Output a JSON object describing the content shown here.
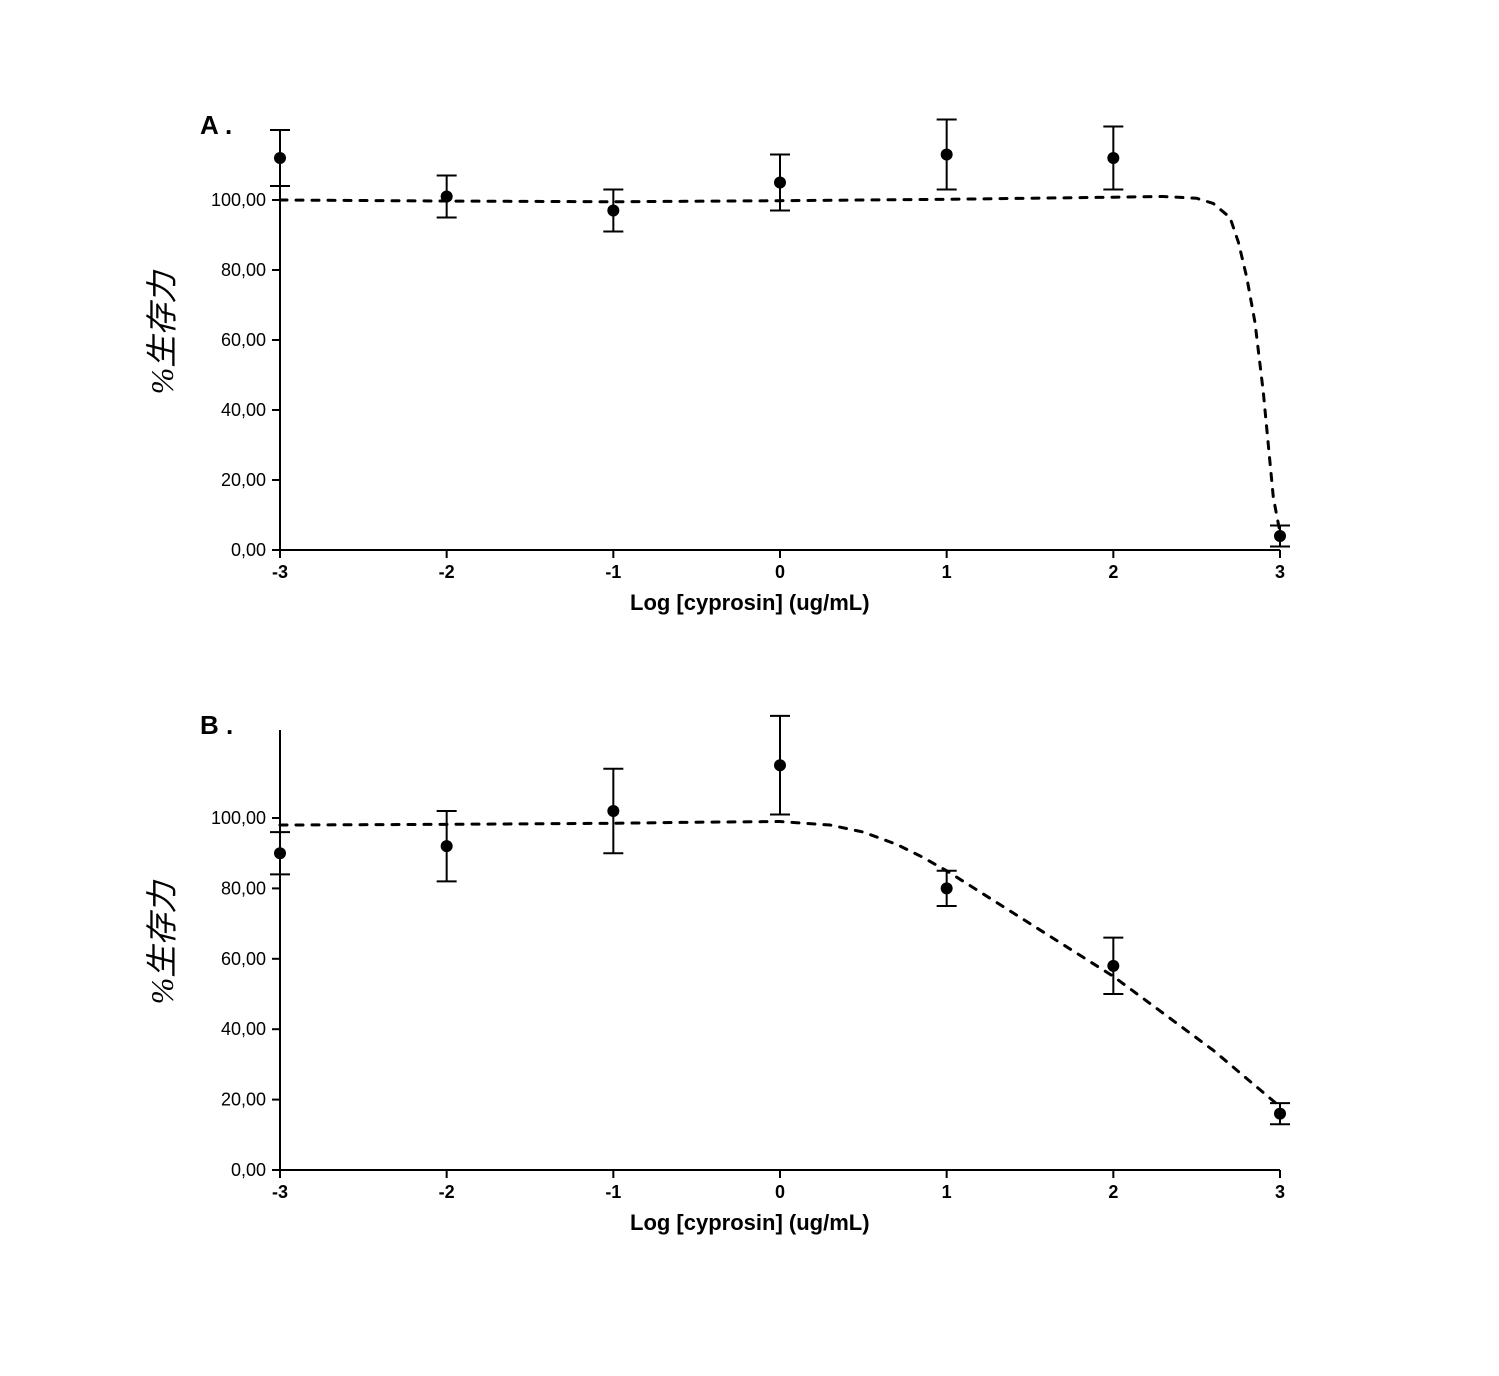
{
  "figure": {
    "background_color": "#ffffff",
    "panels": [
      {
        "id": "A",
        "label": "A .",
        "type": "scatter",
        "xlabel": "Log [cyprosin] (ug/mL)",
        "ylabel": "%生存力",
        "xlim": [
          -3,
          3
        ],
        "ylim": [
          0,
          120
        ],
        "xtick_values": [
          -3,
          -2,
          -1,
          0,
          1,
          2,
          3
        ],
        "xtick_labels": [
          "-3",
          "-2",
          "-1",
          "0",
          "1",
          "2",
          "3"
        ],
        "ytick_values": [
          0,
          20,
          40,
          60,
          80,
          100
        ],
        "ytick_labels": [
          "0,00",
          "20,00",
          "40,00",
          "60,00",
          "80,00",
          "100,00"
        ],
        "axis_color": "#000000",
        "tick_color": "#000000",
        "tick_fontsize": 18,
        "label_fontsize": 22,
        "marker_style": "circle",
        "marker_size": 6,
        "marker_color": "#000000",
        "errorbar_color": "#000000",
        "errorbar_width": 2,
        "errorbar_cap": 10,
        "curve_color": "#000000",
        "curve_style": "dashed",
        "curve_width": 3,
        "data": [
          {
            "x": -3,
            "y": 112,
            "err": 8
          },
          {
            "x": -2,
            "y": 101,
            "err": 6
          },
          {
            "x": -1,
            "y": 97,
            "err": 6
          },
          {
            "x": 0,
            "y": 105,
            "err": 8
          },
          {
            "x": 1,
            "y": 113,
            "err": 10
          },
          {
            "x": 2,
            "y": 112,
            "err": 9
          },
          {
            "x": 3,
            "y": 4,
            "err": 3
          }
        ],
        "curve_points": [
          [
            -3,
            100
          ],
          [
            -2,
            99.7
          ],
          [
            -1,
            99.5
          ],
          [
            0,
            99.8
          ],
          [
            1,
            100.2
          ],
          [
            2,
            100.8
          ],
          [
            2.3,
            101
          ],
          [
            2.5,
            100.5
          ],
          [
            2.6,
            99
          ],
          [
            2.7,
            95
          ],
          [
            2.75,
            88
          ],
          [
            2.8,
            78
          ],
          [
            2.85,
            65
          ],
          [
            2.9,
            45
          ],
          [
            2.93,
            30
          ],
          [
            2.96,
            15
          ],
          [
            3,
            5
          ]
        ]
      },
      {
        "id": "B",
        "label": "B .",
        "type": "scatter",
        "xlabel": "Log [cyprosin] (ug/mL)",
        "ylabel": "%生存力",
        "xlim": [
          -3,
          3
        ],
        "ylim": [
          0,
          125
        ],
        "xtick_values": [
          -3,
          -2,
          -1,
          0,
          1,
          2,
          3
        ],
        "xtick_labels": [
          "-3",
          "-2",
          "-1",
          "0",
          "1",
          "2",
          "3"
        ],
        "ytick_values": [
          0,
          20,
          40,
          60,
          80,
          100
        ],
        "ytick_labels": [
          "0,00",
          "20,00",
          "40,00",
          "60,00",
          "80,00",
          "100,00"
        ],
        "axis_color": "#000000",
        "tick_color": "#000000",
        "tick_fontsize": 18,
        "label_fontsize": 22,
        "marker_style": "circle",
        "marker_size": 6,
        "marker_color": "#000000",
        "errorbar_color": "#000000",
        "errorbar_width": 2,
        "errorbar_cap": 10,
        "curve_color": "#000000",
        "curve_style": "dashed",
        "curve_width": 3,
        "data": [
          {
            "x": -3,
            "y": 90,
            "err": 6
          },
          {
            "x": -2,
            "y": 92,
            "err": 10
          },
          {
            "x": -1,
            "y": 102,
            "err": 12
          },
          {
            "x": 0,
            "y": 115,
            "err": 14
          },
          {
            "x": 1,
            "y": 80,
            "err": 5
          },
          {
            "x": 2,
            "y": 58,
            "err": 8
          },
          {
            "x": 3,
            "y": 16,
            "err": 3
          }
        ],
        "curve_points": [
          [
            -3,
            98
          ],
          [
            -2,
            98.2
          ],
          [
            -1,
            98.5
          ],
          [
            -0.5,
            98.8
          ],
          [
            0,
            99
          ],
          [
            0.3,
            98
          ],
          [
            0.5,
            96
          ],
          [
            0.7,
            92.5
          ],
          [
            0.85,
            89
          ],
          [
            1,
            85
          ],
          [
            1.2,
            79
          ],
          [
            1.4,
            73
          ],
          [
            1.6,
            67
          ],
          [
            1.8,
            61
          ],
          [
            2,
            55
          ],
          [
            2.2,
            48
          ],
          [
            2.4,
            41
          ],
          [
            2.6,
            34
          ],
          [
            2.8,
            26
          ],
          [
            3,
            18
          ]
        ]
      }
    ]
  }
}
